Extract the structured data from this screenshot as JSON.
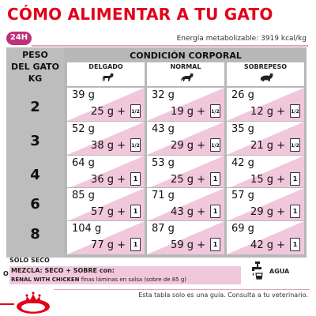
{
  "title": "CÓMO ALIMENTAR A TU GATO",
  "badge_24h": "24H",
  "energy": "Energía metabolizable: 3919 kcal/kg",
  "table": {
    "weight_header": [
      "PESO",
      "DEL GATO",
      "KG"
    ],
    "condition_header": "CONDICIÓN CORPORAL",
    "columns": [
      "DELGADO",
      "NORMAL",
      "SOBREPESO"
    ],
    "rows": [
      {
        "kg": "2",
        "cells": [
          {
            "dry": "39 g",
            "mix": "25 g  +",
            "pouch": "1/2"
          },
          {
            "dry": "32 g",
            "mix": "19 g  +",
            "pouch": "1/2"
          },
          {
            "dry": "26 g",
            "mix": "12 g  +",
            "pouch": "1/2"
          }
        ]
      },
      {
        "kg": "3",
        "cells": [
          {
            "dry": "52 g",
            "mix": "38 g  +",
            "pouch": "1/2"
          },
          {
            "dry": "43 g",
            "mix": "29 g  +",
            "pouch": "1/2"
          },
          {
            "dry": "35 g",
            "mix": "21 g  +",
            "pouch": "1/2"
          }
        ]
      },
      {
        "kg": "4",
        "cells": [
          {
            "dry": "64 g",
            "mix": "36 g  +",
            "pouch": "1"
          },
          {
            "dry": "53 g",
            "mix": "25 g  +",
            "pouch": "1"
          },
          {
            "dry": "42 g",
            "mix": "15 g  +",
            "pouch": "1"
          }
        ]
      },
      {
        "kg": "6",
        "cells": [
          {
            "dry": "85 g",
            "mix": "57 g  +",
            "pouch": "1"
          },
          {
            "dry": "71 g",
            "mix": "43 g  +",
            "pouch": "1"
          },
          {
            "dry": "57 g",
            "mix": "29 g  +",
            "pouch": "1"
          }
        ]
      },
      {
        "kg": "8",
        "cells": [
          {
            "dry": "104 g",
            "mix": "77 g  +",
            "pouch": "1"
          },
          {
            "dry": "87 g",
            "mix": "59 g  +",
            "pouch": "1"
          },
          {
            "dry": "69 g",
            "mix": "42 g  +",
            "pouch": "1"
          }
        ]
      }
    ]
  },
  "legend": {
    "dry_only": "SOLO SECO",
    "or": "O",
    "mix_line1": "MEZCLA: SECO + SOBRE con:",
    "mix_line2_bold": "RENAL WITH CHICKEN",
    "mix_line2_rest": " finas láminas en salsa (sobre de 85 g)",
    "water": "AGUA"
  },
  "footer": "Esta tabla solo es una guía. Consulta a tu veterinario.",
  "colors": {
    "brand_red": "#e2001a",
    "accent_pink": "#f1c7dc",
    "grid_gray": "#b8b8b8"
  }
}
